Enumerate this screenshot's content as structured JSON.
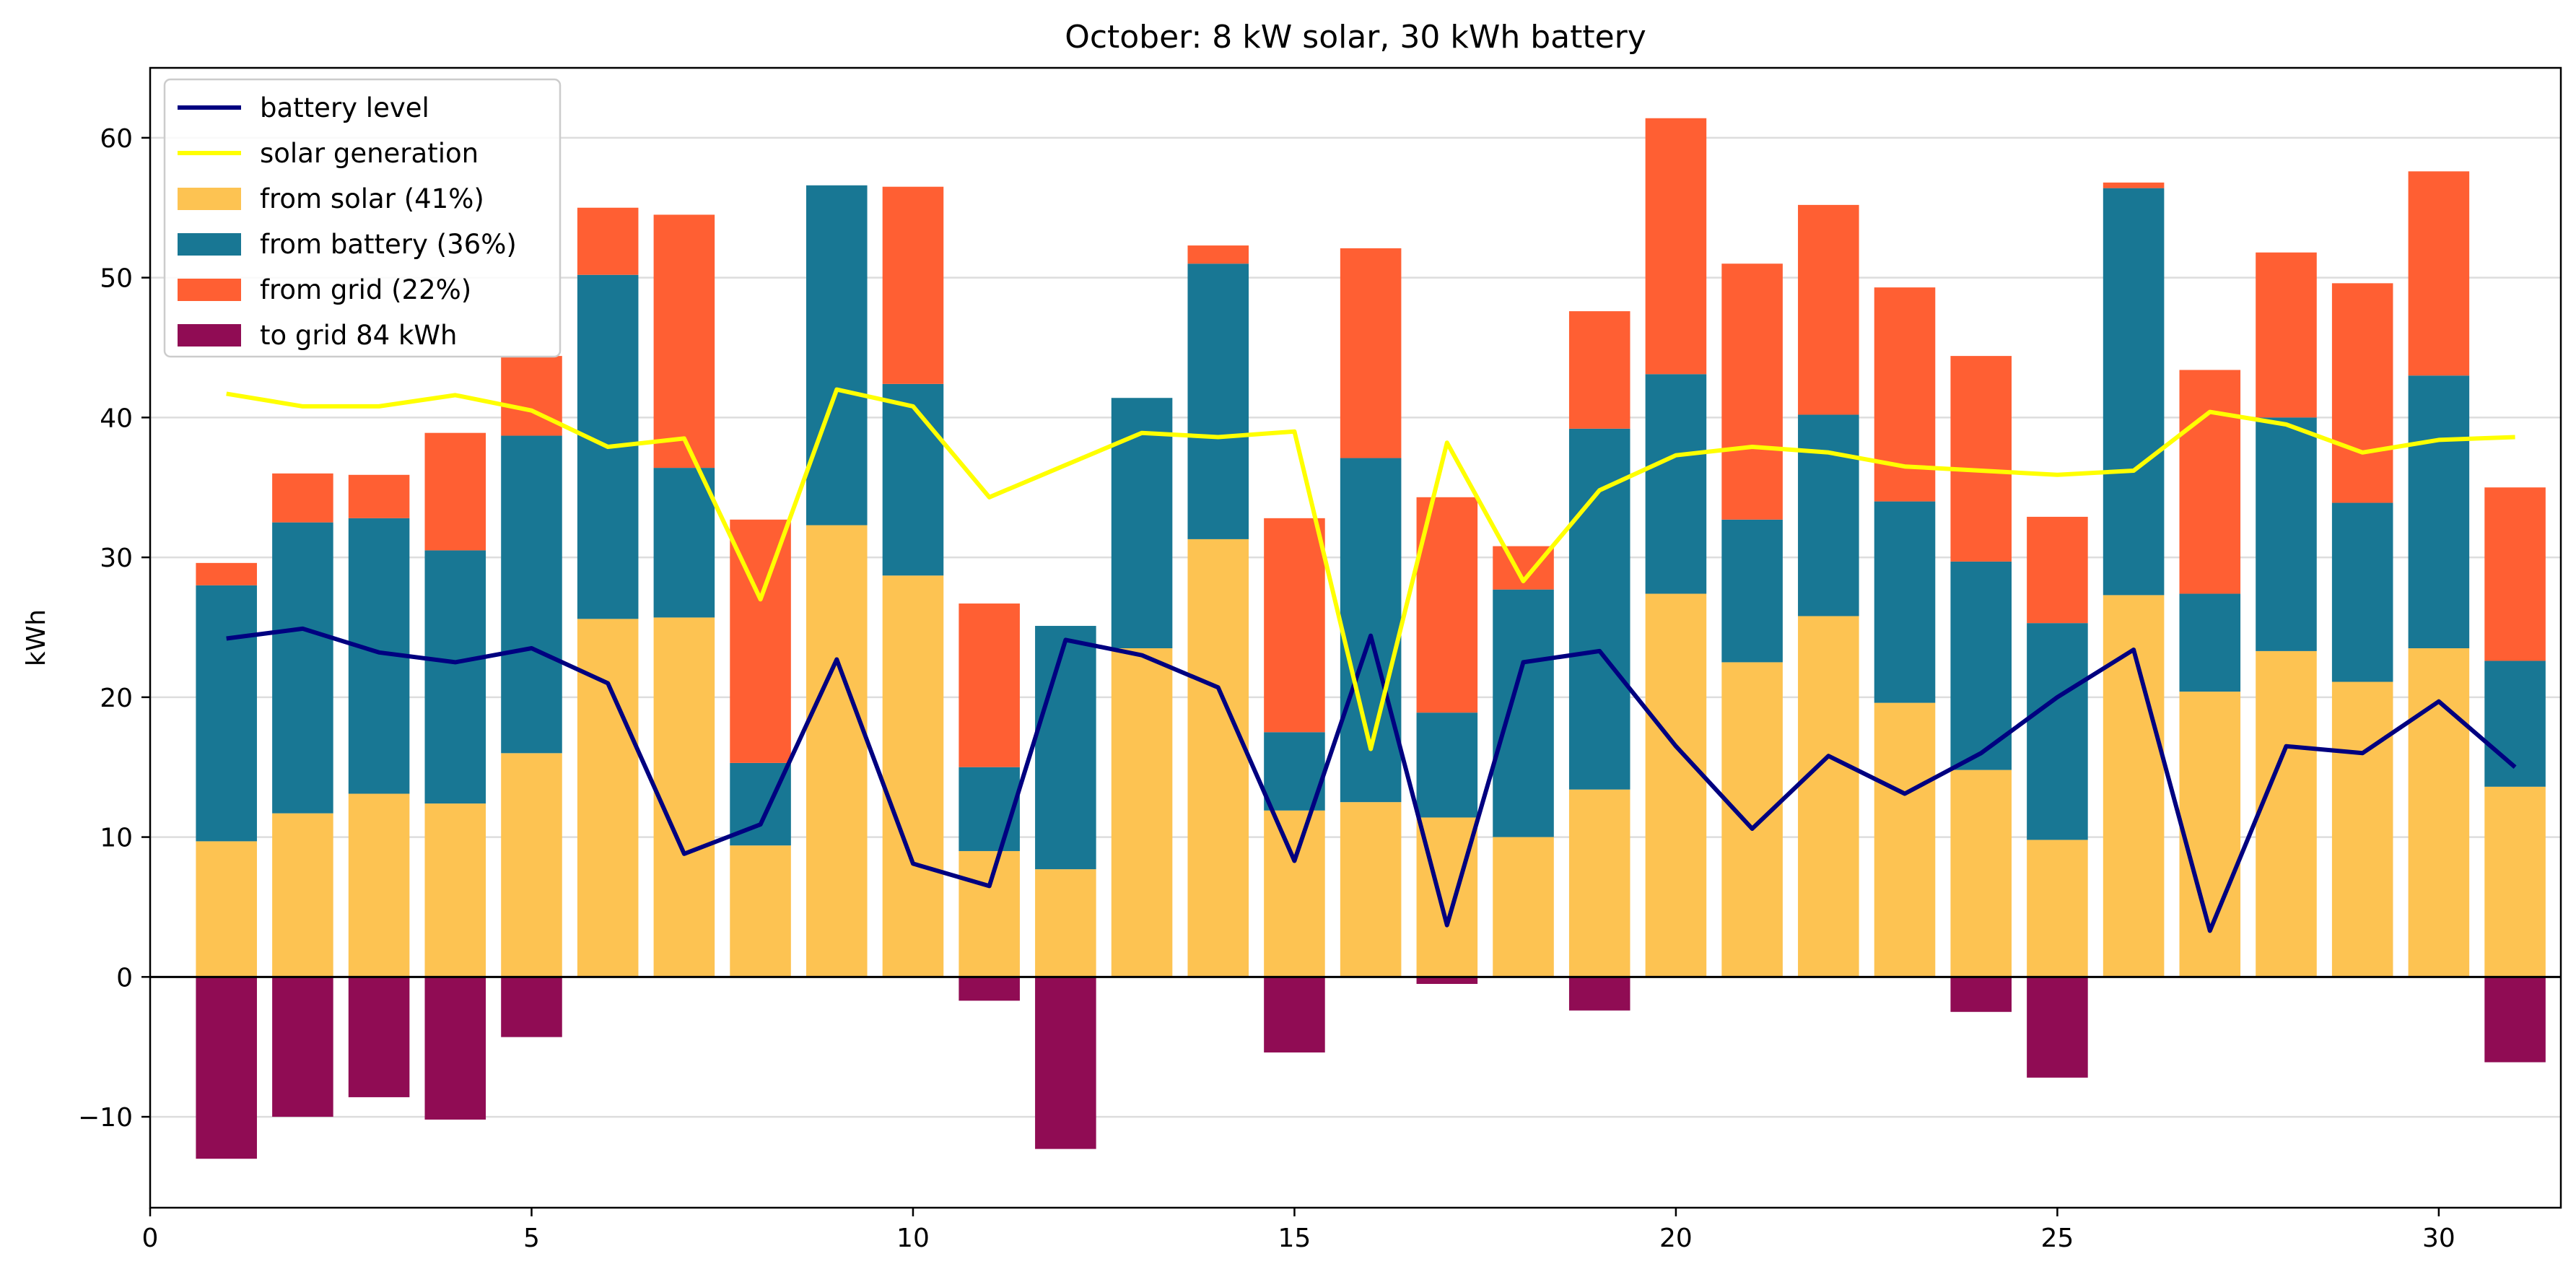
{
  "chart_data": {
    "type": "bar",
    "title": "October: 8 kW solar, 30 kWh battery",
    "xlabel": "",
    "ylabel": "kWh",
    "xlim": [
      0,
      31.6
    ],
    "ylim": [
      -16.5,
      65
    ],
    "x_ticks": [
      0,
      5,
      10,
      15,
      20,
      25,
      30
    ],
    "x_tick_labels": [
      "0",
      "5",
      "10",
      "15",
      "20",
      "25",
      "30"
    ],
    "y_ticks": [
      -10,
      0,
      10,
      20,
      30,
      40,
      50,
      60
    ],
    "y_tick_labels": [
      "−10",
      "0",
      "10",
      "20",
      "30",
      "40",
      "50",
      "60"
    ],
    "grid": "horizontal",
    "legend_position": "top-left",
    "x": [
      1,
      2,
      3,
      4,
      5,
      6,
      7,
      8,
      9,
      10,
      11,
      12,
      13,
      14,
      15,
      16,
      17,
      18,
      19,
      20,
      21,
      22,
      23,
      24,
      25,
      26,
      27,
      28,
      29,
      30,
      31
    ],
    "series": [
      {
        "name": "from solar (41%)",
        "kind": "bar",
        "stack": "usage",
        "color": "#fdc352",
        "values": [
          9.7,
          11.7,
          13.1,
          12.4,
          16.0,
          25.6,
          25.7,
          9.4,
          32.3,
          28.7,
          9.0,
          7.7,
          23.5,
          31.3,
          11.9,
          12.5,
          11.4,
          10.0,
          13.4,
          27.4,
          22.5,
          25.8,
          19.6,
          14.8,
          9.8,
          27.3,
          20.4,
          23.3,
          21.1,
          23.5,
          13.6
        ]
      },
      {
        "name": "from battery (36%)",
        "kind": "bar",
        "stack": "usage",
        "color": "#187794",
        "values": [
          18.3,
          20.8,
          19.7,
          18.1,
          22.7,
          24.6,
          10.7,
          5.9,
          24.3,
          13.7,
          6.0,
          17.4,
          17.9,
          19.7,
          5.6,
          24.6,
          7.5,
          17.7,
          25.8,
          15.7,
          10.2,
          14.4,
          14.4,
          14.9,
          15.5,
          29.1,
          7.0,
          16.7,
          12.8,
          19.5,
          9.0
        ]
      },
      {
        "name": "from grid (22%)",
        "kind": "bar",
        "stack": "usage",
        "color": "#ff5f33",
        "values": [
          1.6,
          3.5,
          3.1,
          8.4,
          5.7,
          4.8,
          18.1,
          17.4,
          0.0,
          14.1,
          11.7,
          0.0,
          0.0,
          1.3,
          15.3,
          15.0,
          15.4,
          3.1,
          8.4,
          18.3,
          18.3,
          15.0,
          15.3,
          14.7,
          7.6,
          0.4,
          16.0,
          11.8,
          15.7,
          14.6,
          12.4
        ]
      },
      {
        "name": "to grid 84 kWh",
        "kind": "bar",
        "stack": "export",
        "color": "#900c54",
        "values": [
          -13.0,
          -10.0,
          -8.6,
          -10.2,
          -4.3,
          0,
          0,
          0,
          0,
          0,
          -1.7,
          -12.3,
          0,
          0,
          -5.4,
          0,
          -0.5,
          0,
          -2.4,
          0,
          0,
          0,
          0,
          -2.5,
          -7.2,
          0,
          0,
          0,
          0,
          0,
          -6.1
        ]
      },
      {
        "name": "battery level",
        "kind": "line",
        "color": "#000080",
        "values": [
          24.2,
          24.9,
          23.2,
          22.5,
          23.5,
          21.0,
          8.8,
          10.9,
          22.7,
          8.1,
          6.5,
          24.1,
          23.0,
          20.7,
          8.3,
          24.4,
          3.7,
          22.5,
          23.3,
          16.5,
          10.6,
          15.8,
          13.1,
          16.0,
          20.0,
          23.4,
          3.3,
          16.5,
          16.0,
          19.7,
          15.0
        ]
      },
      {
        "name": "solar generation",
        "kind": "line",
        "color": "#ffff00",
        "values": [
          41.7,
          40.8,
          40.8,
          41.6,
          40.5,
          37.9,
          38.5,
          27.0,
          42.0,
          40.8,
          34.3,
          36.6,
          38.9,
          38.6,
          39.0,
          16.3,
          38.2,
          28.3,
          34.8,
          37.3,
          37.9,
          37.5,
          36.5,
          36.2,
          35.9,
          36.2,
          40.4,
          39.5,
          37.5,
          38.4,
          38.6
        ]
      }
    ]
  }
}
